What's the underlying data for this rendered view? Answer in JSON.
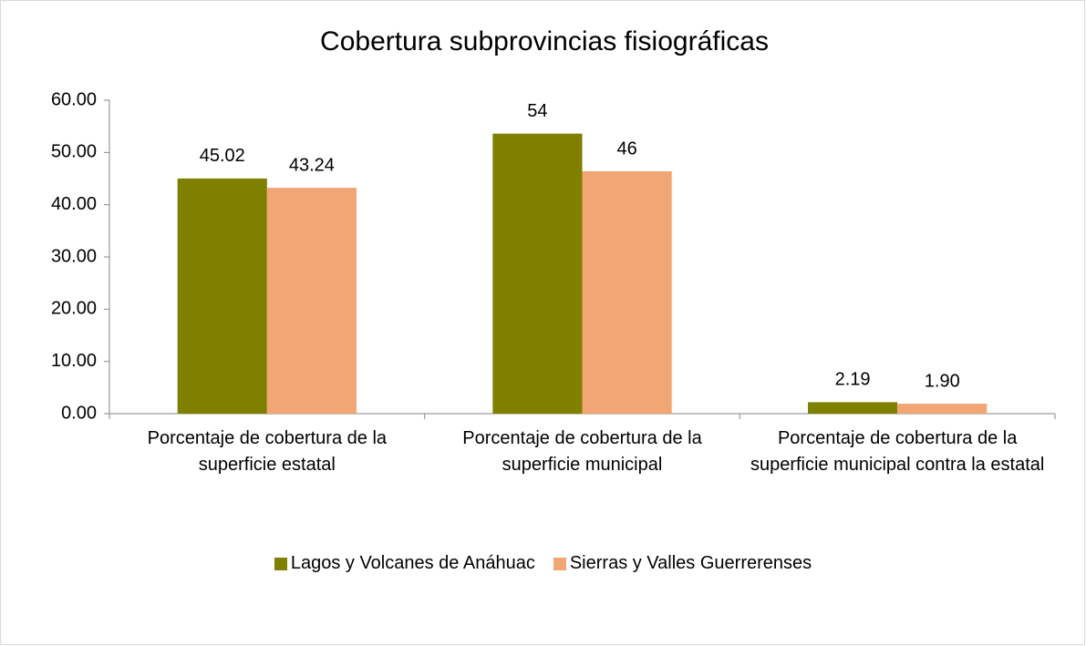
{
  "chart_data": {
    "type": "bar",
    "title": "Cobertura subprovincias fisiográficas",
    "categories": [
      "Porcentaje de cobertura de la superficie estatal",
      "Porcentaje de cobertura de la superficie municipal",
      "Porcentaje de cobertura de la superficie municipal contra la estatal"
    ],
    "series": [
      {
        "name": "Lagos y Volcanes de Anáhuac",
        "color": "#808000",
        "values": [
          45.02,
          53.6,
          2.19
        ],
        "value_labels": [
          "45.02",
          "54",
          "2.19"
        ]
      },
      {
        "name": "Sierras y Valles Guerrerenses",
        "color": "#f2a673",
        "values": [
          43.24,
          46.4,
          1.9
        ],
        "value_labels": [
          "43.24",
          "46",
          "1.90"
        ]
      }
    ],
    "ylim": [
      0,
      60
    ],
    "yticks": [
      {
        "value": 0,
        "label": "0.00"
      },
      {
        "value": 10,
        "label": "10.00"
      },
      {
        "value": 20,
        "label": "20.00"
      },
      {
        "value": 30,
        "label": "30.00"
      },
      {
        "value": 40,
        "label": "40.00"
      },
      {
        "value": 50,
        "label": "50.00"
      },
      {
        "value": 60,
        "label": "60.00"
      }
    ],
    "legend": "bottom"
  }
}
